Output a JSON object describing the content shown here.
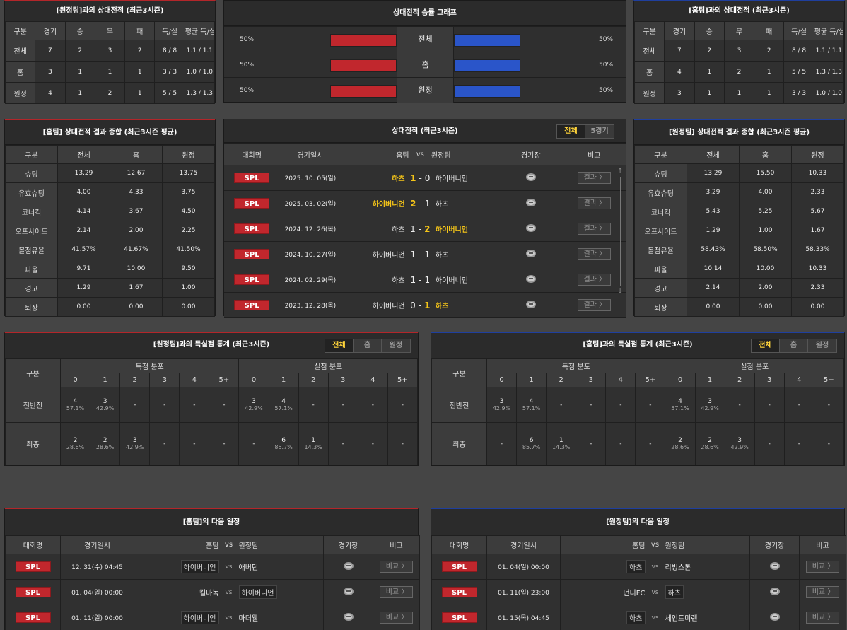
{
  "away_h2h": {
    "title": "[원정팀]과의 상대전적 (최근3시즌)",
    "headers": [
      "구분",
      "경기",
      "승",
      "무",
      "패",
      "득/실",
      "평균 득/실"
    ],
    "rows": [
      [
        "전체",
        "7",
        "2",
        "3",
        "2",
        "8 / 8",
        "1.1 / 1.1"
      ],
      [
        "홈",
        "3",
        "1",
        "1",
        "1",
        "3 / 3",
        "1.0 / 1.0"
      ],
      [
        "원정",
        "4",
        "1",
        "2",
        "1",
        "5 / 5",
        "1.3 / 1.3"
      ]
    ]
  },
  "home_h2h": {
    "title": "[홈팀]과의 상대전적 (최근3시즌)",
    "headers": [
      "구분",
      "경기",
      "승",
      "무",
      "패",
      "득/실",
      "평균 득/실"
    ],
    "rows": [
      [
        "전체",
        "7",
        "2",
        "3",
        "2",
        "8 / 8",
        "1.1 / 1.1"
      ],
      [
        "홈",
        "4",
        "1",
        "2",
        "1",
        "5 / 5",
        "1.3 / 1.3"
      ],
      [
        "원정",
        "3",
        "1",
        "1",
        "1",
        "3 / 3",
        "1.0 / 1.0"
      ]
    ]
  },
  "graph": {
    "title": "상대전적 승률 그래프",
    "rows": [
      {
        "label": "전체",
        "left": "50%",
        "right": "50%",
        "left_frac": 0.5,
        "right_frac": 0.5
      },
      {
        "label": "홈",
        "left": "50%",
        "right": "50%",
        "left_frac": 0.5,
        "right_frac": 0.5
      },
      {
        "label": "원정",
        "left": "50%",
        "right": "50%",
        "left_frac": 0.5,
        "right_frac": 0.5
      }
    ],
    "left_color": "#c1272d",
    "right_color": "#2a55c9"
  },
  "home_summary": {
    "title": "[홈팀] 상대전적 결과 종합 (최근3시즌 평균)",
    "headers": [
      "구분",
      "전체",
      "홈",
      "원정"
    ],
    "rows": [
      [
        "슈팅",
        "13.29",
        "12.67",
        "13.75"
      ],
      [
        "유효슈팅",
        "4.00",
        "4.33",
        "3.75"
      ],
      [
        "코너킥",
        "4.14",
        "3.67",
        "4.50"
      ],
      [
        "오프사이드",
        "2.14",
        "2.00",
        "2.25"
      ],
      [
        "볼점유율",
        "41.57%",
        "41.67%",
        "41.50%"
      ],
      [
        "파울",
        "9.71",
        "10.00",
        "9.50"
      ],
      [
        "경고",
        "1.29",
        "1.67",
        "1.00"
      ],
      [
        "퇴장",
        "0.00",
        "0.00",
        "0.00"
      ]
    ]
  },
  "away_summary": {
    "title": "[원정팀] 상대전적 결과 종합 (최근3시즌 평균)",
    "headers": [
      "구분",
      "전체",
      "홈",
      "원정"
    ],
    "rows": [
      [
        "슈팅",
        "13.29",
        "15.50",
        "10.33"
      ],
      [
        "유효슈팅",
        "3.29",
        "4.00",
        "2.33"
      ],
      [
        "코너킥",
        "5.43",
        "5.25",
        "5.67"
      ],
      [
        "오프사이드",
        "1.29",
        "1.00",
        "1.67"
      ],
      [
        "볼점유율",
        "58.43%",
        "58.50%",
        "58.33%"
      ],
      [
        "파울",
        "10.14",
        "10.00",
        "10.33"
      ],
      [
        "경고",
        "2.14",
        "2.00",
        "2.33"
      ],
      [
        "퇴장",
        "0.00",
        "0.00",
        "0.00"
      ]
    ]
  },
  "matches": {
    "title": "상대전적 (최근3시즌)",
    "tabs": [
      "전체",
      "5경기"
    ],
    "headers": {
      "league": "대회명",
      "date": "경기일시",
      "home": "홈팀",
      "vs": "vs",
      "away": "원정팀",
      "venue": "경기장",
      "note": "비고"
    },
    "result_label": "결과 〉",
    "rows": [
      {
        "league": "SPL",
        "date": "2025. 10. 05(일)",
        "home": "하츠",
        "hs": "1",
        "as": "0",
        "away": "하이버니언",
        "win": "home"
      },
      {
        "league": "SPL",
        "date": "2025. 03. 02(일)",
        "home": "하이버니언",
        "hs": "2",
        "as": "1",
        "away": "하츠",
        "win": "home"
      },
      {
        "league": "SPL",
        "date": "2024. 12. 26(목)",
        "home": "하츠",
        "hs": "1",
        "as": "2",
        "away": "하이버니언",
        "win": "away"
      },
      {
        "league": "SPL",
        "date": "2024. 10. 27(일)",
        "home": "하이버니언",
        "hs": "1",
        "as": "1",
        "away": "하츠",
        "win": "draw"
      },
      {
        "league": "SPL",
        "date": "2024. 02. 29(목)",
        "home": "하츠",
        "hs": "1",
        "as": "1",
        "away": "하이버니언",
        "win": "draw"
      },
      {
        "league": "SPL",
        "date": "2023. 12. 28(목)",
        "home": "하이버니언",
        "hs": "0",
        "as": "1",
        "away": "하츠",
        "win": "away"
      }
    ]
  },
  "away_goals": {
    "title": "[원정팀]과의 득실점 통계 (최근3시즌)",
    "tabs": [
      "전체",
      "홈",
      "원정"
    ],
    "col_label": "구분",
    "scored": "득점 분포",
    "conceded": "실점 분포",
    "buckets": [
      "0",
      "1",
      "2",
      "3",
      "4",
      "5+"
    ],
    "rows": [
      {
        "label": "전반전",
        "cells": [
          [
            "4",
            "57.1%"
          ],
          [
            "3",
            "42.9%"
          ],
          [
            "-",
            ""
          ],
          [
            "-",
            ""
          ],
          [
            "-",
            ""
          ],
          [
            "-",
            ""
          ],
          [
            "3",
            "42.9%"
          ],
          [
            "4",
            "57.1%"
          ],
          [
            "-",
            ""
          ],
          [
            "-",
            ""
          ],
          [
            "-",
            ""
          ],
          [
            "-",
            ""
          ]
        ]
      },
      {
        "label": "최종",
        "cells": [
          [
            "2",
            "28.6%"
          ],
          [
            "2",
            "28.6%"
          ],
          [
            "3",
            "42.9%"
          ],
          [
            "-",
            ""
          ],
          [
            "-",
            ""
          ],
          [
            "-",
            ""
          ],
          [
            "-",
            ""
          ],
          [
            "6",
            "85.7%"
          ],
          [
            "1",
            "14.3%"
          ],
          [
            "-",
            ""
          ],
          [
            "-",
            ""
          ],
          [
            "-",
            ""
          ]
        ]
      }
    ]
  },
  "home_goals": {
    "title": "[홈팀]과의 득실점 통계 (최근3시즌)",
    "tabs": [
      "전체",
      "홈",
      "원정"
    ],
    "col_label": "구분",
    "scored": "득점 분포",
    "conceded": "실점 분포",
    "buckets": [
      "0",
      "1",
      "2",
      "3",
      "4",
      "5+"
    ],
    "rows": [
      {
        "label": "전반전",
        "cells": [
          [
            "3",
            "42.9%"
          ],
          [
            "4",
            "57.1%"
          ],
          [
            "-",
            ""
          ],
          [
            "-",
            ""
          ],
          [
            "-",
            ""
          ],
          [
            "-",
            ""
          ],
          [
            "4",
            "57.1%"
          ],
          [
            "3",
            "42.9%"
          ],
          [
            "-",
            ""
          ],
          [
            "-",
            ""
          ],
          [
            "-",
            ""
          ],
          [
            "-",
            ""
          ]
        ]
      },
      {
        "label": "최종",
        "cells": [
          [
            "-",
            ""
          ],
          [
            "6",
            "85.7%"
          ],
          [
            "1",
            "14.3%"
          ],
          [
            "-",
            ""
          ],
          [
            "-",
            ""
          ],
          [
            "-",
            ""
          ],
          [
            "2",
            "28.6%"
          ],
          [
            "2",
            "28.6%"
          ],
          [
            "3",
            "42.9%"
          ],
          [
            "-",
            ""
          ],
          [
            "-",
            ""
          ],
          [
            "-",
            ""
          ]
        ]
      }
    ]
  },
  "home_next": {
    "title": "[홈팀]의 다음 일정",
    "headers": {
      "league": "대회명",
      "date": "경기일시",
      "home": "홈팀",
      "vs": "vs",
      "away": "원정팀",
      "venue": "경기장",
      "note": "비고"
    },
    "btn": "비교 〉",
    "rows": [
      {
        "league": "SPL",
        "date": "12. 31(수) 04:45",
        "home": "하이버니언",
        "away": "애버딘",
        "hl": "home"
      },
      {
        "league": "SPL",
        "date": "01. 04(일) 00:00",
        "home": "킬마녹",
        "away": "하이버니언",
        "hl": "away"
      },
      {
        "league": "SPL",
        "date": "01. 11(일) 00:00",
        "home": "하이버니언",
        "away": "마더웰",
        "hl": "home"
      }
    ]
  },
  "away_next": {
    "title": "[원정팀]의 다음 일정",
    "headers": {
      "league": "대회명",
      "date": "경기일시",
      "home": "홈팀",
      "vs": "vs",
      "away": "원정팀",
      "venue": "경기장",
      "note": "비고"
    },
    "btn": "비교 〉",
    "rows": [
      {
        "league": "SPL",
        "date": "01. 04(일) 00:00",
        "home": "하츠",
        "away": "리빙스톤",
        "hl": "home"
      },
      {
        "league": "SPL",
        "date": "01. 11(일) 23:00",
        "home": "던디FC",
        "away": "하츠",
        "hl": "away"
      },
      {
        "league": "SPL",
        "date": "01. 15(목) 04:45",
        "home": "하츠",
        "away": "세인트미렌",
        "hl": "home"
      }
    ]
  }
}
